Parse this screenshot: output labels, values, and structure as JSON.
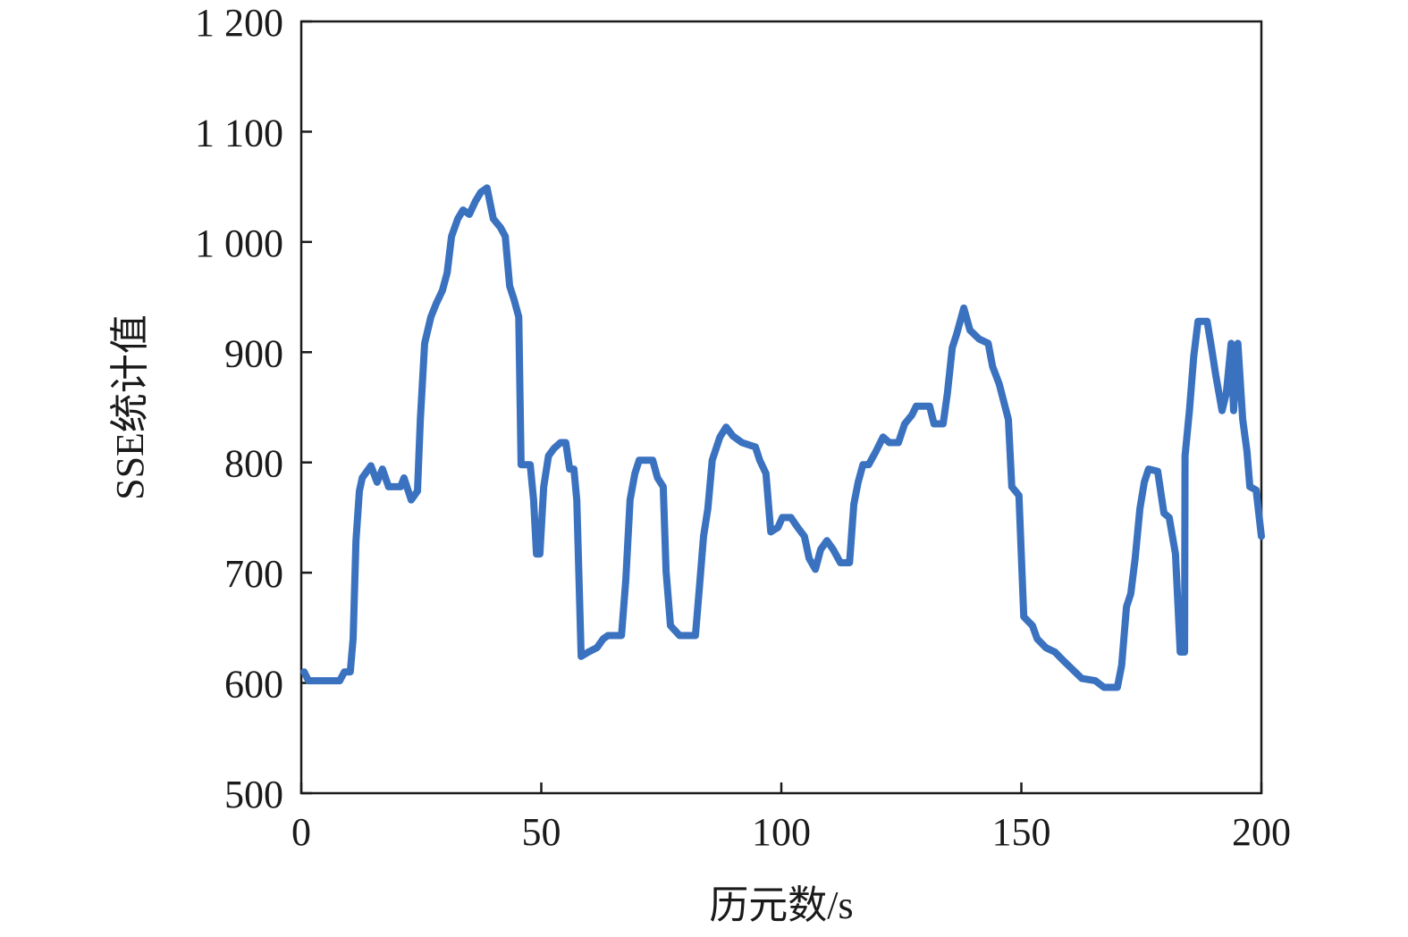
{
  "chart_data": {
    "type": "line",
    "title": "",
    "xlabel": "历元数/s",
    "ylabel": "SSE统计值",
    "xlim": [
      0,
      200
    ],
    "ylim": [
      500,
      1200
    ],
    "xticks": [
      0,
      50,
      100,
      150,
      200
    ],
    "xtick_labels": [
      "0",
      "50",
      "100",
      "150",
      "200"
    ],
    "yticks": [
      500,
      600,
      700,
      800,
      900,
      1000,
      1100,
      1200
    ],
    "ytick_labels": [
      "500",
      "600",
      "700",
      "800",
      "900",
      "1 000",
      "1 100",
      "1 200"
    ],
    "grid": false,
    "legend": "none",
    "series": [
      {
        "color": "#3a72c0",
        "x": [
          0.6,
          1.5,
          8,
          9,
          10.2,
          10.8,
          11.4,
          12.1,
          12.7,
          14.5,
          15.8,
          16.9,
          18.2,
          20.7,
          21.4,
          22.9,
          24.2,
          24.8,
          25.7,
          27,
          28.1,
          29.4,
          30.4,
          31.3,
          32.6,
          33.7,
          35,
          36.3,
          37.4,
          38.7,
          40,
          41.5,
          42.5,
          43.4,
          44.3,
          45.3,
          45.8,
          47.7,
          48.4,
          49,
          49.7,
          50.5,
          51.5,
          52.7,
          54,
          55.1,
          55.9,
          56.8,
          57.4,
          58.3,
          59.8,
          61.6,
          62.9,
          63.9,
          66.7,
          67.6,
          68.5,
          69.5,
          70.4,
          73.2,
          74.2,
          75.4,
          76,
          76.9,
          78.8,
          82.1,
          82.9,
          83.8,
          84.7,
          85.6,
          87.2,
          88.5,
          89.9,
          91.8,
          94.6,
          95.5,
          96.8,
          97.8,
          99.3,
          100.2,
          102,
          103.4,
          104.8,
          105.8,
          107.1,
          108.2,
          109.5,
          110.8,
          112.3,
          114.2,
          115.1,
          116,
          117,
          118.2,
          119.7,
          121.2,
          122.5,
          124.4,
          125.7,
          127.2,
          128.1,
          130.9,
          131.8,
          133.7,
          134.6,
          135.6,
          136.5,
          138,
          139.3,
          141.2,
          143.1,
          144,
          145.4,
          147.3,
          148,
          149.5,
          150.5,
          152.3,
          153.3,
          155.1,
          157,
          158.8,
          160.7,
          162.6,
          165.4,
          167.2,
          170,
          170.9,
          171.9,
          172.8,
          173.7,
          174.7,
          175.6,
          176.5,
          178.4,
          179.7,
          180.8,
          182.1,
          183.1,
          184,
          184.1,
          185,
          185.9,
          186.8,
          188.7,
          189.6,
          190.5,
          191.8,
          192.7,
          193.7,
          194.2,
          195.1,
          196.1,
          197,
          197.6,
          198.9,
          200
        ],
        "y": [
          610,
          602,
          602,
          610,
          610,
          640,
          729,
          774,
          786,
          797,
          782,
          794,
          778,
          778,
          786,
          766,
          774,
          839,
          908,
          932,
          944,
          956,
          972,
          1005,
          1021,
          1029,
          1025,
          1037,
          1045,
          1049,
          1021,
          1013,
          1005,
          960,
          948,
          932,
          798,
          798,
          766,
          717,
          717,
          778,
          806,
          813,
          818,
          818,
          794,
          794,
          766,
          624,
          628,
          632,
          640,
          643,
          643,
          693,
          766,
          790,
          802,
          802,
          786,
          778,
          701,
          652,
          643,
          643,
          685,
          733,
          758,
          802,
          823,
          832,
          824,
          818,
          814,
          802,
          790,
          737,
          741,
          750,
          750,
          741,
          733,
          713,
          703,
          721,
          729,
          721,
          709,
          709,
          762,
          782,
          798,
          798,
          810,
          823,
          818,
          818,
          835,
          843,
          851,
          851,
          835,
          835,
          863,
          904,
          916,
          940,
          920,
          912,
          908,
          887,
          871,
          839,
          778,
          770,
          660,
          652,
          640,
          632,
          628,
          620,
          612,
          604,
          602,
          596,
          596,
          616,
          669,
          681,
          713,
          758,
          782,
          794,
          792,
          754,
          750,
          717,
          628,
          628,
          806,
          847,
          896,
          928,
          928,
          904,
          879,
          847,
          863,
          908,
          847,
          908,
          839,
          810,
          778,
          775,
          733
        ]
      }
    ]
  }
}
